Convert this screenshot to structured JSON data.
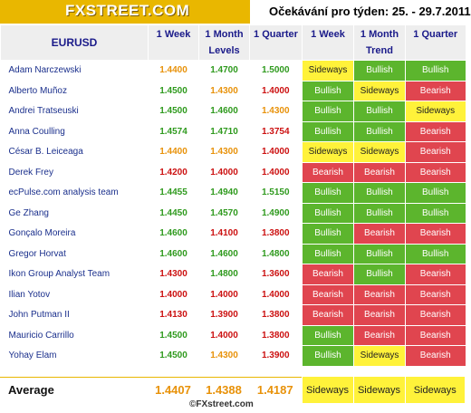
{
  "header": {
    "logo_text": "FXSTREET.COM",
    "title": "Očekávání pro týden: 25. - 29.7.2011"
  },
  "columns": {
    "pair": "EURUSD",
    "levels": {
      "group": "Levels",
      "week": "1 Week",
      "month": "1 Month",
      "quarter": "1 Quarter"
    },
    "trend": {
      "group": "Trend",
      "week": "1 Week",
      "month": "1 Month",
      "quarter": "1 Quarter"
    }
  },
  "rows": [
    {
      "name": "Adam Narczewski",
      "week": "1.4400",
      "month": "1.4700",
      "quarter": "1.5000",
      "wc": "orange",
      "mc": "green",
      "qc": "green",
      "tw": "Sideways",
      "tm": "Bullish",
      "tq": "Bullish"
    },
    {
      "name": "Alberto Muñoz",
      "week": "1.4500",
      "month": "1.4300",
      "quarter": "1.4000",
      "wc": "green",
      "mc": "orange",
      "qc": "red",
      "tw": "Bullish",
      "tm": "Sideways",
      "tq": "Bearish"
    },
    {
      "name": "Andrei Tratseuski",
      "week": "1.4500",
      "month": "1.4600",
      "quarter": "1.4300",
      "wc": "green",
      "mc": "green",
      "qc": "orange",
      "tw": "Bullish",
      "tm": "Bullish",
      "tq": "Sideways"
    },
    {
      "name": "Anna Coulling",
      "week": "1.4574",
      "month": "1.4710",
      "quarter": "1.3754",
      "wc": "green",
      "mc": "green",
      "qc": "red",
      "tw": "Bullish",
      "tm": "Bullish",
      "tq": "Bearish"
    },
    {
      "name": "César B. Leiceaga",
      "week": "1.4400",
      "month": "1.4300",
      "quarter": "1.4000",
      "wc": "orange",
      "mc": "orange",
      "qc": "red",
      "tw": "Sideways",
      "tm": "Sideways",
      "tq": "Bearish"
    },
    {
      "name": "Derek Frey",
      "week": "1.4200",
      "month": "1.4000",
      "quarter": "1.4000",
      "wc": "red",
      "mc": "red",
      "qc": "red",
      "tw": "Bearish",
      "tm": "Bearish",
      "tq": "Bearish"
    },
    {
      "name": "ecPulse.com analysis team",
      "week": "1.4455",
      "month": "1.4940",
      "quarter": "1.5150",
      "wc": "green",
      "mc": "green",
      "qc": "green",
      "tw": "Bullish",
      "tm": "Bullish",
      "tq": "Bullish"
    },
    {
      "name": "Ge Zhang",
      "week": "1.4450",
      "month": "1.4570",
      "quarter": "1.4900",
      "wc": "green",
      "mc": "green",
      "qc": "green",
      "tw": "Bullish",
      "tm": "Bullish",
      "tq": "Bullish"
    },
    {
      "name": "Gonçalo Moreira",
      "week": "1.4600",
      "month": "1.4100",
      "quarter": "1.3800",
      "wc": "green",
      "mc": "red",
      "qc": "red",
      "tw": "Bullish",
      "tm": "Bearish",
      "tq": "Bearish"
    },
    {
      "name": "Gregor Horvat",
      "week": "1.4600",
      "month": "1.4600",
      "quarter": "1.4800",
      "wc": "green",
      "mc": "green",
      "qc": "green",
      "tw": "Bullish",
      "tm": "Bullish",
      "tq": "Bullish"
    },
    {
      "name": "Ikon Group Analyst Team",
      "week": "1.4300",
      "month": "1.4800",
      "quarter": "1.3600",
      "wc": "red",
      "mc": "green",
      "qc": "red",
      "tw": "Bearish",
      "tm": "Bullish",
      "tq": "Bearish"
    },
    {
      "name": "Ilian Yotov",
      "week": "1.4000",
      "month": "1.4000",
      "quarter": "1.4000",
      "wc": "red",
      "mc": "red",
      "qc": "red",
      "tw": "Bearish",
      "tm": "Bearish",
      "tq": "Bearish"
    },
    {
      "name": "John Putman II",
      "week": "1.4130",
      "month": "1.3900",
      "quarter": "1.3800",
      "wc": "red",
      "mc": "red",
      "qc": "red",
      "tw": "Bearish",
      "tm": "Bearish",
      "tq": "Bearish"
    },
    {
      "name": "Mauricio Carrillo",
      "week": "1.4500",
      "month": "1.4000",
      "quarter": "1.3800",
      "wc": "green",
      "mc": "red",
      "qc": "red",
      "tw": "Bullish",
      "tm": "Bearish",
      "tq": "Bearish"
    },
    {
      "name": "Yohay Elam",
      "week": "1.4500",
      "month": "1.4300",
      "quarter": "1.3900",
      "wc": "green",
      "mc": "orange",
      "qc": "red",
      "tw": "Bullish",
      "tm": "Sideways",
      "tq": "Bearish"
    }
  ],
  "average": {
    "label": "Average",
    "week": "1.4407",
    "month": "1.4388",
    "quarter": "1.4187",
    "tw": "Sideways",
    "tm": "Sideways",
    "tq": "Sideways"
  },
  "footer": {
    "copyright": "©FXstreet.com"
  },
  "colors": {
    "brand": "#e9b700",
    "bullish": "#5cb52d",
    "bearish": "#e0454f",
    "sideways": "#fff23a",
    "level_up": "#2f9a1e",
    "level_down": "#cc1111",
    "level_flat": "#e8920a",
    "name_text": "#1a2f8c"
  }
}
